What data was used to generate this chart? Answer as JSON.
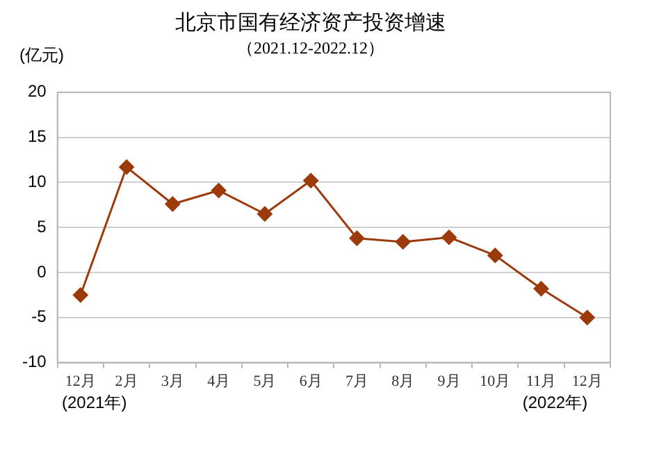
{
  "chart_data": {
    "type": "line",
    "title": "北京市国有经济资产投资增速",
    "subtitle": "（2021.12-2022.12）",
    "ylabel": "(亿元)",
    "categories": [
      "12月",
      "2月",
      "3月",
      "4月",
      "5月",
      "6月",
      "7月",
      "8月",
      "9月",
      "10月",
      "11月",
      "12月"
    ],
    "series": [
      {
        "color": "#9c3a0c",
        "values": [
          -2.5,
          11.7,
          7.6,
          9.1,
          6.5,
          10.2,
          3.8,
          3.4,
          3.9,
          1.9,
          -1.8,
          -5.0
        ]
      }
    ],
    "ylim": [
      -10,
      20
    ],
    "yticks": [
      -10,
      -5,
      0,
      5,
      10,
      15,
      20
    ],
    "grid": "y",
    "legend": false,
    "marker": "diamond",
    "line_style": "solid",
    "annotations": [
      "(2021年)",
      "(2022年)"
    ]
  }
}
